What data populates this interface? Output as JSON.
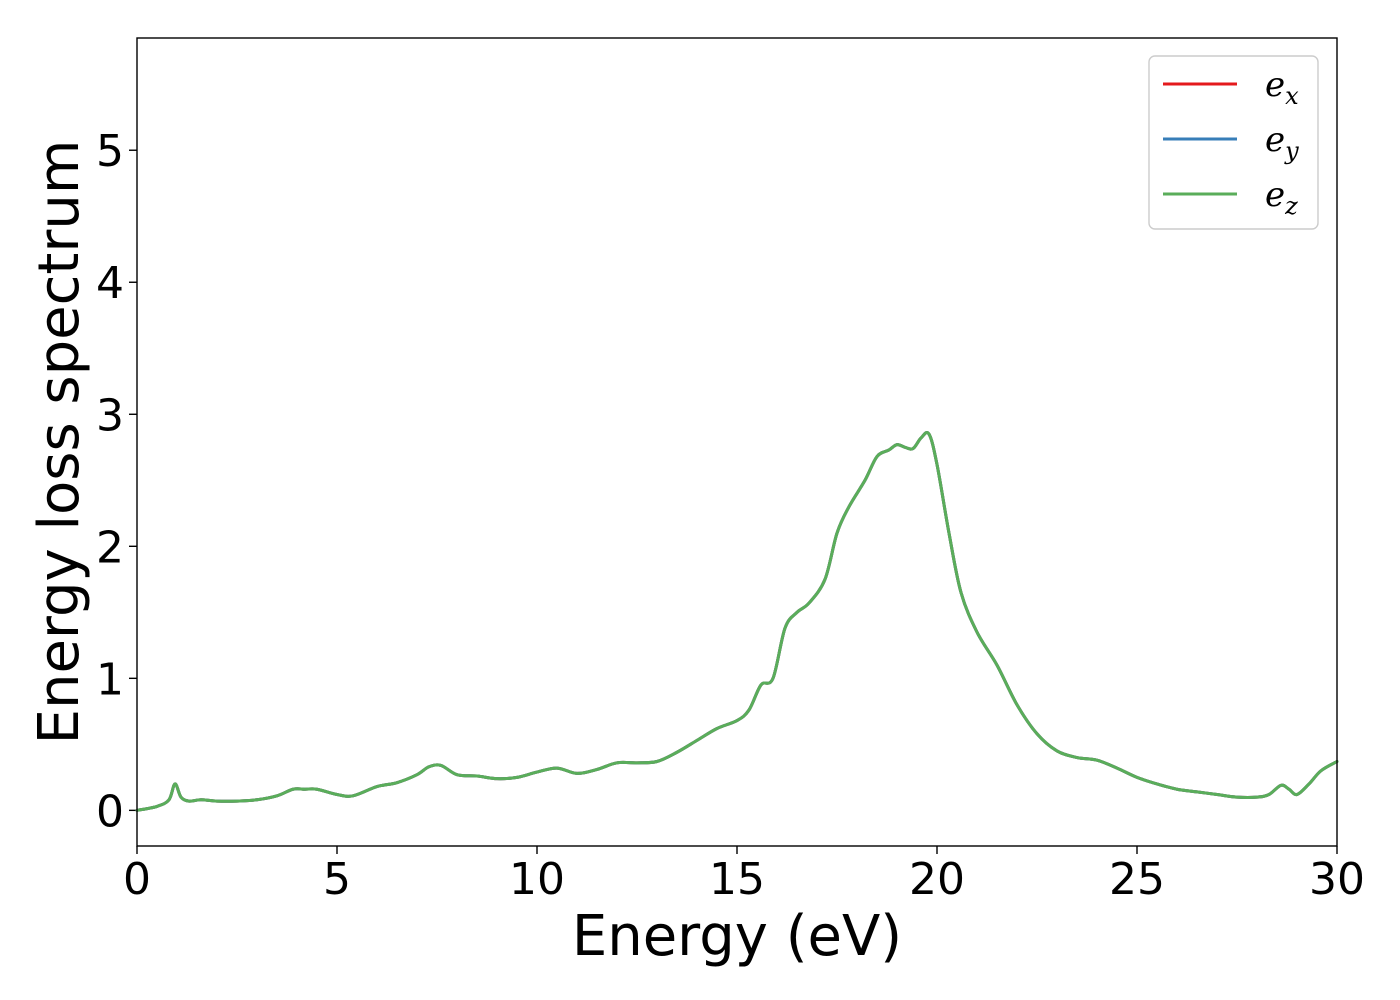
{
  "chart_data": {
    "type": "line",
    "xlabel": "Energy (eV)",
    "ylabel": "Energy loss spectrum",
    "xlim": [
      0,
      30
    ],
    "ylim": [
      -0.27,
      5.85
    ],
    "xticks": [
      0,
      5,
      10,
      15,
      20,
      25,
      30
    ],
    "xtick_labels": [
      "0",
      "5",
      "10",
      "15",
      "20",
      "25",
      "30"
    ],
    "yticks": [
      0,
      1,
      2,
      3,
      4,
      5
    ],
    "ytick_labels": [
      "0",
      "1",
      "2",
      "3",
      "4",
      "5"
    ],
    "grid": false,
    "legend_position": "top-right",
    "x": [
      0,
      0.5,
      0.8,
      0.95,
      1.1,
      1.3,
      1.6,
      2.0,
      2.5,
      3.0,
      3.5,
      3.9,
      4.2,
      4.5,
      5.0,
      5.4,
      6.0,
      6.5,
      7.0,
      7.3,
      7.6,
      8.0,
      8.5,
      9.0,
      9.5,
      10.0,
      10.5,
      11.0,
      11.5,
      12.0,
      12.5,
      13.0,
      13.5,
      14.0,
      14.5,
      15.0,
      15.3,
      15.6,
      15.9,
      16.2,
      16.5,
      16.8,
      17.2,
      17.5,
      17.8,
      18.2,
      18.5,
      18.8,
      19.0,
      19.2,
      19.4,
      19.6,
      19.8,
      20.0,
      20.3,
      20.6,
      21.0,
      21.5,
      22.0,
      22.5,
      23.0,
      23.5,
      24.0,
      24.5,
      25.0,
      25.5,
      26.0,
      26.5,
      27.0,
      27.5,
      28.0,
      28.3,
      28.6,
      28.8,
      29.0,
      29.3,
      29.6,
      30.0
    ],
    "series": [
      {
        "name": "e_x",
        "color": "#e41a1c",
        "values": [
          0,
          0.03,
          0.08,
          0.2,
          0.1,
          0.07,
          0.08,
          0.07,
          0.07,
          0.08,
          0.11,
          0.16,
          0.16,
          0.16,
          0.12,
          0.11,
          0.18,
          0.21,
          0.27,
          0.33,
          0.34,
          0.27,
          0.26,
          0.24,
          0.25,
          0.29,
          0.32,
          0.28,
          0.31,
          0.36,
          0.36,
          0.37,
          0.44,
          0.53,
          0.62,
          0.68,
          0.76,
          0.95,
          1.0,
          1.38,
          1.5,
          1.57,
          1.75,
          2.1,
          2.3,
          2.5,
          2.68,
          2.73,
          2.77,
          2.75,
          2.74,
          2.82,
          2.85,
          2.62,
          2.1,
          1.65,
          1.35,
          1.1,
          0.8,
          0.58,
          0.45,
          0.4,
          0.38,
          0.32,
          0.25,
          0.2,
          0.16,
          0.14,
          0.12,
          0.1,
          0.1,
          0.12,
          0.19,
          0.16,
          0.12,
          0.2,
          0.3,
          0.37
        ]
      },
      {
        "name": "e_y",
        "color": "#377eb8",
        "values": [
          0,
          0.03,
          0.08,
          0.2,
          0.1,
          0.07,
          0.08,
          0.07,
          0.07,
          0.08,
          0.11,
          0.16,
          0.16,
          0.16,
          0.12,
          0.11,
          0.18,
          0.21,
          0.27,
          0.33,
          0.34,
          0.27,
          0.26,
          0.24,
          0.25,
          0.29,
          0.32,
          0.28,
          0.31,
          0.36,
          0.36,
          0.37,
          0.44,
          0.53,
          0.62,
          0.68,
          0.76,
          0.95,
          1.0,
          1.38,
          1.5,
          1.57,
          1.75,
          2.1,
          2.3,
          2.5,
          2.68,
          2.73,
          2.77,
          2.75,
          2.74,
          2.82,
          2.85,
          2.62,
          2.1,
          1.65,
          1.35,
          1.1,
          0.8,
          0.58,
          0.45,
          0.4,
          0.38,
          0.32,
          0.25,
          0.2,
          0.16,
          0.14,
          0.12,
          0.1,
          0.1,
          0.12,
          0.19,
          0.16,
          0.12,
          0.2,
          0.3,
          0.37
        ]
      },
      {
        "name": "e_z",
        "color": "#5aad5a",
        "values": [
          0,
          0.03,
          0.08,
          0.2,
          0.1,
          0.07,
          0.08,
          0.07,
          0.07,
          0.08,
          0.11,
          0.16,
          0.16,
          0.16,
          0.12,
          0.11,
          0.18,
          0.21,
          0.27,
          0.33,
          0.34,
          0.27,
          0.26,
          0.24,
          0.25,
          0.29,
          0.32,
          0.28,
          0.31,
          0.36,
          0.36,
          0.37,
          0.44,
          0.53,
          0.62,
          0.68,
          0.76,
          0.95,
          1.0,
          1.38,
          1.5,
          1.57,
          1.75,
          2.1,
          2.3,
          2.5,
          2.68,
          2.73,
          2.77,
          2.75,
          2.74,
          2.82,
          2.85,
          2.62,
          2.1,
          1.65,
          1.35,
          1.1,
          0.8,
          0.58,
          0.45,
          0.4,
          0.38,
          0.32,
          0.25,
          0.2,
          0.16,
          0.14,
          0.12,
          0.1,
          0.1,
          0.12,
          0.19,
          0.16,
          0.12,
          0.2,
          0.3,
          0.37
        ]
      }
    ],
    "legend": [
      {
        "symbol": "e",
        "subscript": "x"
      },
      {
        "symbol": "e",
        "subscript": "y"
      },
      {
        "symbol": "e",
        "subscript": "z"
      }
    ]
  }
}
